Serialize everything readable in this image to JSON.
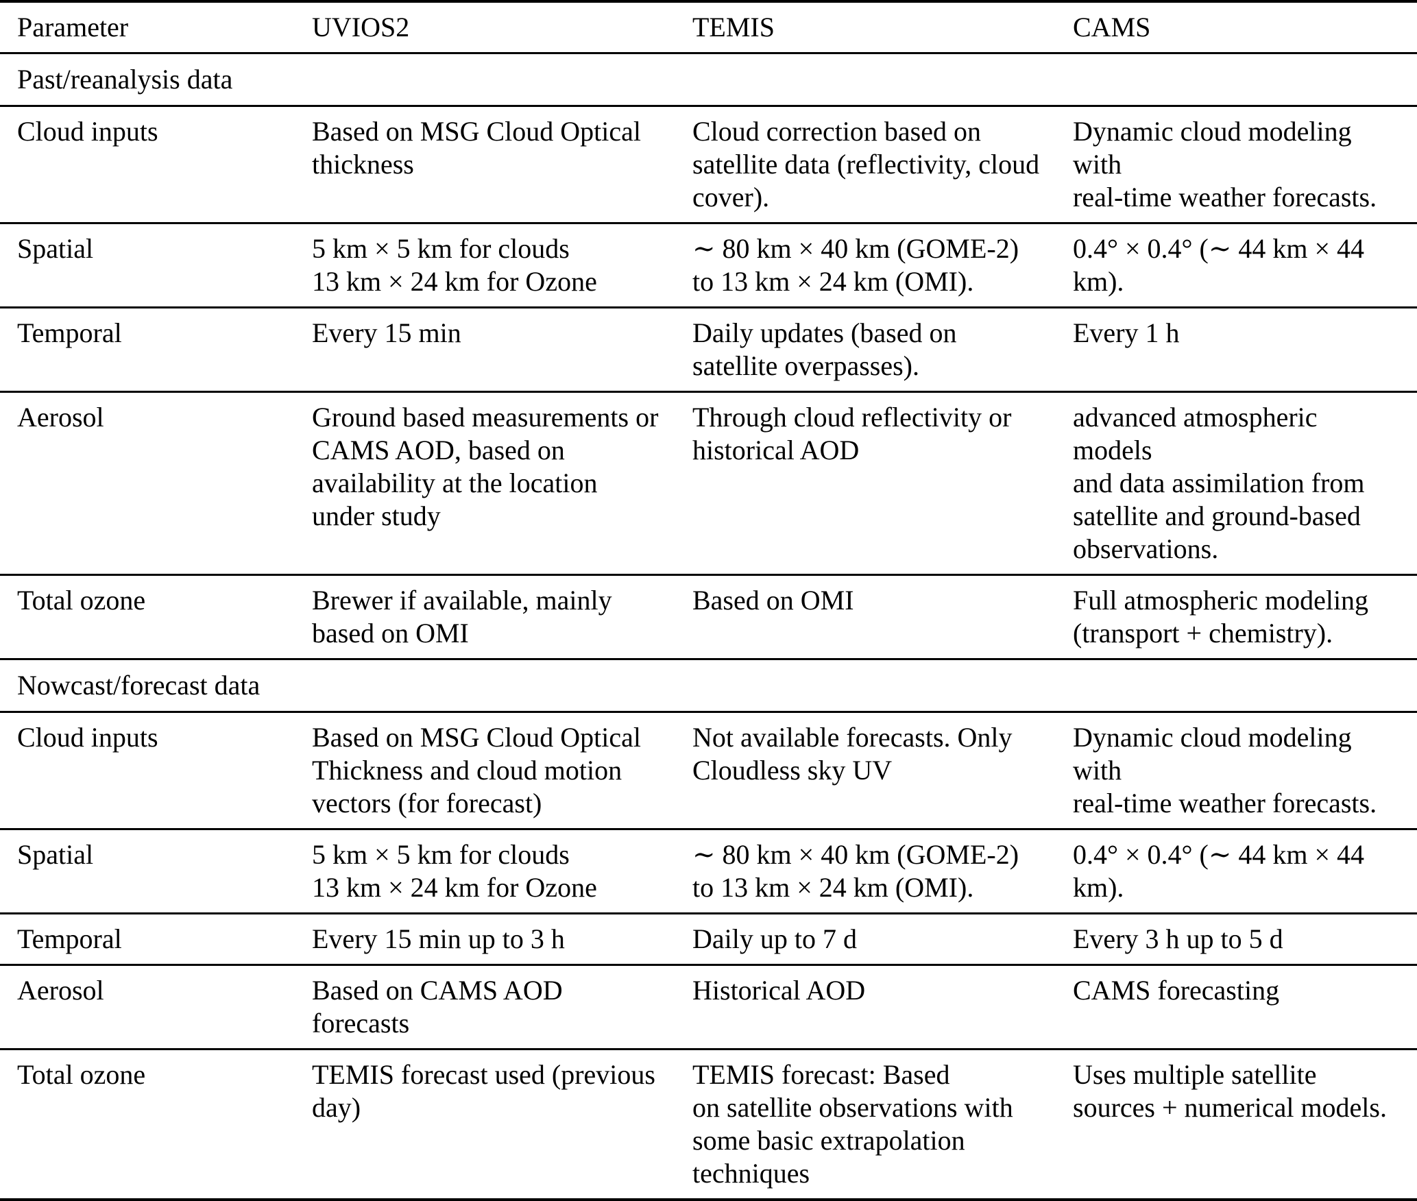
{
  "colors": {
    "text": "#000000",
    "rule": "#000000",
    "background": "#ffffff"
  },
  "table": {
    "columns": [
      "Parameter",
      "UVIOS2",
      "TEMIS",
      "CAMS"
    ],
    "sections": [
      {
        "title": "Past/reanalysis data",
        "rows": [
          [
            "Cloud inputs",
            "Based on MSG Cloud Optical\nthickness",
            "Cloud correction based on\nsatellite data (reflectivity, cloud\ncover).",
            "Dynamic cloud modeling with\nreal-time weather forecasts."
          ],
          [
            "Spatial",
            "5 km × 5 km for clouds\n13 km × 24 km for Ozone",
            "∼ 80 km × 40 km (GOME-2)\nto 13 km × 24 km (OMI).",
            "0.4° × 0.4° (∼ 44 km × 44 km)."
          ],
          [
            "Temporal",
            "Every 15 min",
            "Daily updates (based on\nsatellite overpasses).",
            "Every 1 h"
          ],
          [
            "Aerosol",
            "Ground based measurements or\nCAMS AOD, based on\navailability at the location\nunder study",
            "Through cloud reflectivity or\nhistorical AOD",
            "advanced atmospheric models\nand data assimilation from\nsatellite and ground-based\nobservations."
          ],
          [
            "Total ozone",
            "Brewer if available, mainly\nbased on OMI",
            "Based on OMI",
            "Full atmospheric modeling\n(transport + chemistry)."
          ]
        ]
      },
      {
        "title": "Nowcast/forecast data",
        "rows": [
          [
            "Cloud inputs",
            "Based on MSG Cloud Optical\nThickness and cloud motion\nvectors (for forecast)",
            "Not available forecasts. Only\nCloudless sky UV",
            "Dynamic cloud modeling with\nreal-time weather forecasts."
          ],
          [
            "Spatial",
            "5 km × 5 km for clouds\n13 km × 24 km for Ozone",
            "∼ 80 km × 40 km (GOME-2)\nto 13 km × 24 km (OMI).",
            "0.4° × 0.4° (∼ 44 km × 44 km)."
          ],
          [
            "Temporal",
            "Every 15 min up to 3 h",
            "Daily up to 7 d",
            "Every 3 h up to 5 d"
          ],
          [
            "Aerosol",
            "Based on CAMS AOD\nforecasts",
            "Historical AOD",
            "CAMS forecasting"
          ],
          [
            "Total ozone",
            "TEMIS forecast used (previous\nday)",
            "TEMIS forecast: Based\non satellite observations with\nsome basic extrapolation\ntechniques",
            "Uses multiple satellite\nsources + numerical models."
          ]
        ]
      }
    ]
  }
}
